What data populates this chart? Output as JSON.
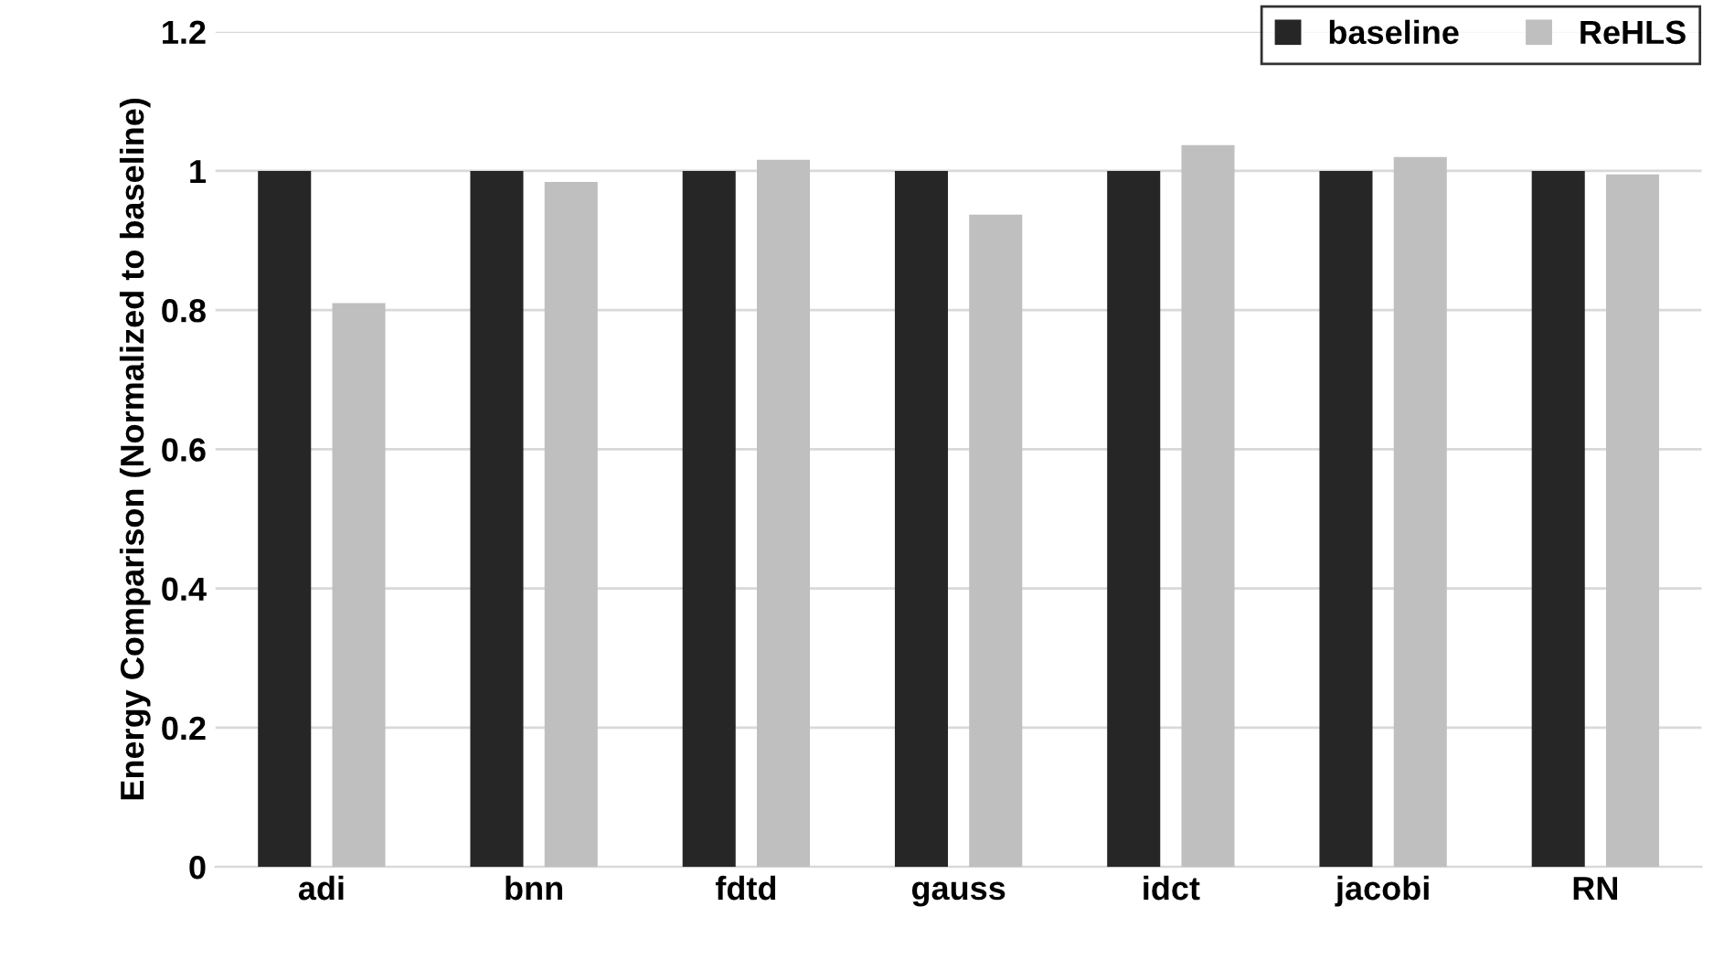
{
  "chart_data": {
    "type": "bar",
    "ylabel": "Energy Comparison (Normalized to baseline)",
    "categories": [
      "adi",
      "bnn",
      "fdtd",
      "gauss",
      "idct",
      "jacobi",
      "RN"
    ],
    "series": [
      {
        "name": "baseline",
        "color": "#262626",
        "values": [
          1,
          1,
          1,
          1,
          1,
          1,
          1
        ]
      },
      {
        "name": "ReHLS",
        "color": "#bfbfbf",
        "values": [
          0.81,
          0.984,
          1.016,
          0.937,
          1.037,
          1.02,
          0.995
        ]
      }
    ],
    "ylim": [
      0,
      1.2
    ],
    "yticks": [
      0,
      0.2,
      0.4,
      0.6,
      0.8,
      1,
      1.2
    ],
    "grid": "y",
    "legend": "top right"
  }
}
